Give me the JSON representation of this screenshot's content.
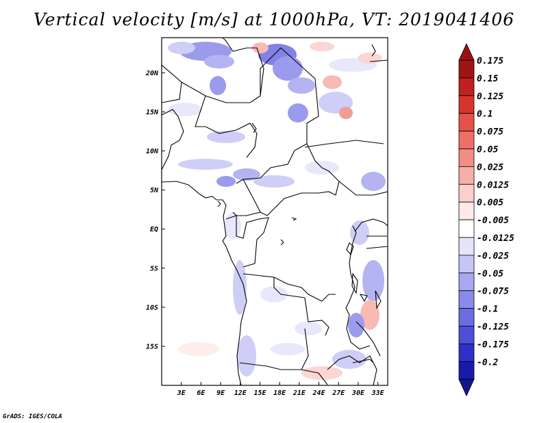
{
  "title": "Vertical velocity [m/s] at 1000hPa, VT: 2019041406",
  "footer": "GrADS: IGES/COLA",
  "map": {
    "lon_range": [
      0,
      34.5
    ],
    "lat_range": [
      -20,
      24.5
    ],
    "lat_ticks": [
      {
        "value": 20,
        "label": "20N"
      },
      {
        "value": 15,
        "label": "15N"
      },
      {
        "value": 10,
        "label": "10N"
      },
      {
        "value": 5,
        "label": "5N"
      },
      {
        "value": 0,
        "label": "EQ"
      },
      {
        "value": -5,
        "label": "5S"
      },
      {
        "value": -10,
        "label": "10S"
      },
      {
        "value": -15,
        "label": "15S"
      }
    ],
    "lon_ticks": [
      {
        "value": 3,
        "label": "3E"
      },
      {
        "value": 6,
        "label": "6E"
      },
      {
        "value": 9,
        "label": "9E"
      },
      {
        "value": 12,
        "label": "12E"
      },
      {
        "value": 15,
        "label": "15E"
      },
      {
        "value": 18,
        "label": "18E"
      },
      {
        "value": 21,
        "label": "21E"
      },
      {
        "value": 24,
        "label": "24E"
      },
      {
        "value": 27,
        "label": "27E"
      },
      {
        "value": 30,
        "label": "30E"
      },
      {
        "value": 33,
        "label": "33E"
      }
    ]
  },
  "colorbar": {
    "bins": [
      {
        "label": "0.175",
        "color": "#a11414"
      },
      {
        "label": "0.15",
        "color": "#c0201e"
      },
      {
        "label": "0.125",
        "color": "#d6352e"
      },
      {
        "label": "0.1",
        "color": "#e6514a"
      },
      {
        "label": "0.075",
        "color": "#ef6f68"
      },
      {
        "label": "0.05",
        "color": "#f28d85"
      },
      {
        "label": "0.025",
        "color": "#f7aea8"
      },
      {
        "label": "0.0125",
        "color": "#fbcfcb"
      },
      {
        "label": "0.005",
        "color": "#fdeae8"
      },
      {
        "label": "-0.005",
        "color": "#ffffff"
      },
      {
        "label": "-0.0125",
        "color": "#e4e4fb"
      },
      {
        "label": "-0.025",
        "color": "#c6c6f6"
      },
      {
        "label": "-0.05",
        "color": "#a8a8f0"
      },
      {
        "label": "-0.075",
        "color": "#8a8aea"
      },
      {
        "label": "-0.1",
        "color": "#6c6ce2"
      },
      {
        "label": "-0.125",
        "color": "#4e4ed8"
      },
      {
        "label": "-0.175",
        "color": "#3030c8"
      },
      {
        "label": "-0.2",
        "color": "#1a1aaa"
      }
    ],
    "top_arrow_color": "#9a1010",
    "bottom_arrow_color": "#14148e"
  }
}
